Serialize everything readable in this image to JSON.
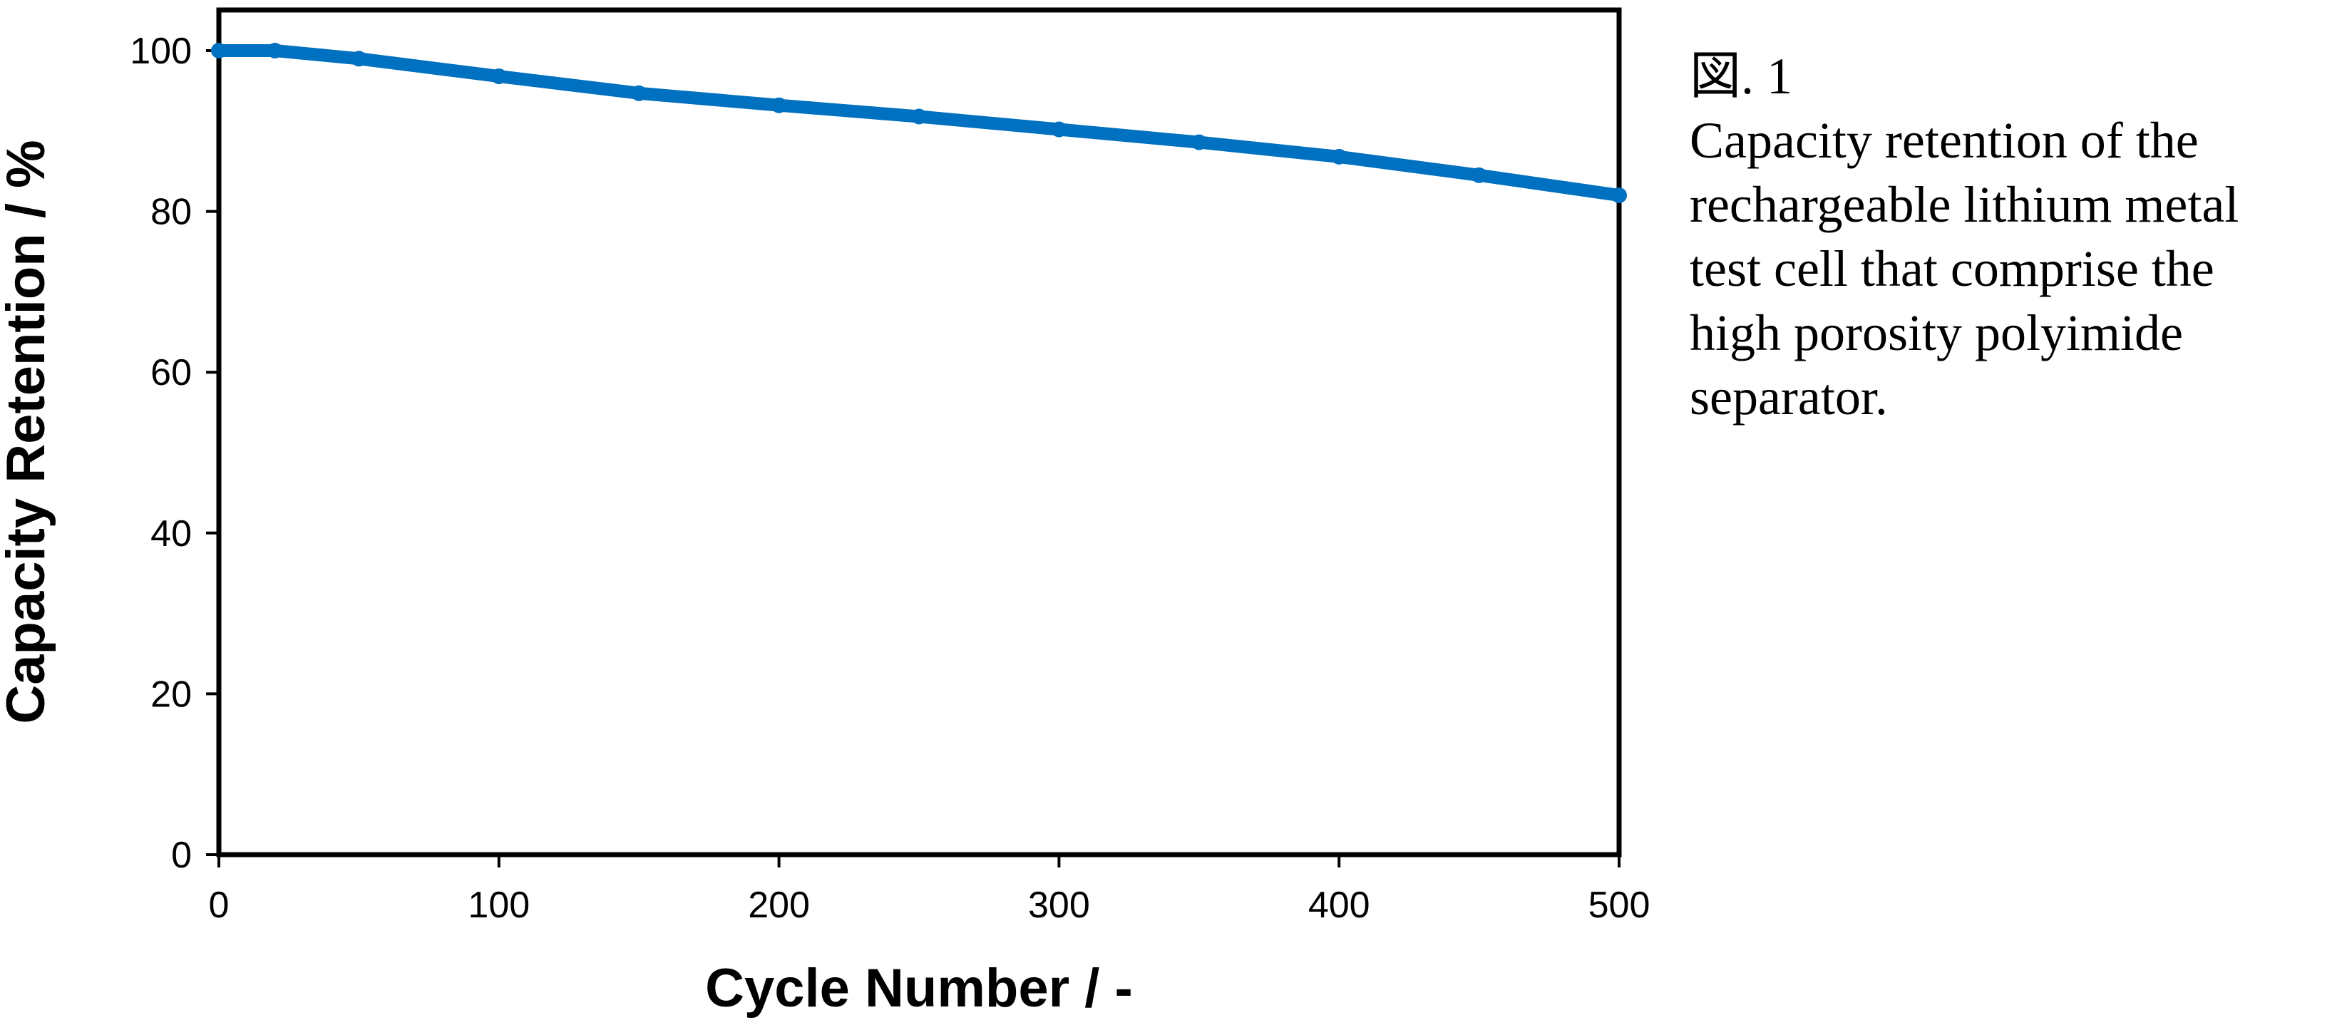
{
  "caption": {
    "figure_label": "図. 1",
    "lines": [
      "Capacity retention of the",
      "rechargeable lithium metal",
      "test cell that comprise the",
      "high porosity polyimide",
      "separator."
    ]
  },
  "chart_data": {
    "type": "line",
    "title": "",
    "xlabel": "Cycle Number / -",
    "ylabel": "Capacity Retention  / %",
    "xlim": [
      0,
      500
    ],
    "ylim": [
      0,
      100
    ],
    "x_ticks": [
      "0",
      "100",
      "200",
      "300",
      "400",
      "500"
    ],
    "y_ticks": [
      "0",
      "20",
      "40",
      "60",
      "80",
      "100"
    ],
    "grid": false,
    "legend": "none",
    "series_color": "#0070C0",
    "series": [
      {
        "x": [
          0,
          20,
          50,
          100,
          150,
          200,
          250,
          300,
          350,
          400,
          450,
          500
        ],
        "y": [
          100,
          100,
          99,
          96.8,
          94.7,
          93.2,
          91.8,
          90.2,
          88.6,
          86.8,
          84.5,
          82
        ]
      }
    ]
  }
}
